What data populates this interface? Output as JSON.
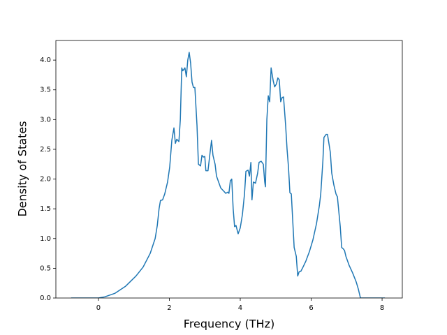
{
  "chart_data": {
    "type": "line",
    "xlabel": "Frequency (THz)",
    "ylabel": "Density of States",
    "xlim": [
      -1.2,
      8.57
    ],
    "ylim": [
      0,
      4.33
    ],
    "xticks": [
      0,
      2,
      4,
      6,
      8
    ],
    "yticks": [
      {
        "value": 0,
        "label": "0.0"
      },
      {
        "value": 0.5,
        "label": "0.5"
      },
      {
        "value": 1,
        "label": "1.0"
      },
      {
        "value": 1.5,
        "label": "1.5"
      },
      {
        "value": 2,
        "label": "2.0"
      },
      {
        "value": 2.5,
        "label": "2.5"
      },
      {
        "value": 3,
        "label": "3.0"
      },
      {
        "value": 3.5,
        "label": "3.5"
      },
      {
        "value": 4,
        "label": "4.0"
      }
    ],
    "grid": false,
    "series": [
      {
        "color": "#1f77b4",
        "x": [
          -0.77,
          0,
          0.18,
          0.47,
          0.77,
          1.06,
          1.26,
          1.46,
          1.6,
          1.66,
          1.71,
          1.75,
          1.81,
          1.87,
          1.95,
          2.01,
          2.07,
          2.13,
          2.17,
          2.21,
          2.27,
          2.31,
          2.35,
          2.38,
          2.44,
          2.48,
          2.52,
          2.56,
          2.6,
          2.64,
          2.68,
          2.72,
          2.78,
          2.82,
          2.88,
          2.92,
          2.96,
          3.0,
          3.03,
          3.09,
          3.15,
          3.19,
          3.23,
          3.29,
          3.33,
          3.39,
          3.45,
          3.53,
          3.59,
          3.65,
          3.68,
          3.72,
          3.76,
          3.8,
          3.84,
          3.88,
          3.94,
          4.0,
          4.06,
          4.12,
          4.16,
          4.22,
          4.26,
          4.3,
          4.33,
          4.37,
          4.43,
          4.49,
          4.53,
          4.59,
          4.65,
          4.69,
          4.71,
          4.75,
          4.79,
          4.83,
          4.87,
          4.93,
          4.97,
          5.02,
          5.06,
          5.1,
          5.14,
          5.18,
          5.22,
          5.28,
          5.32,
          5.36,
          5.4,
          5.44,
          5.48,
          5.52,
          5.58,
          5.62,
          5.66,
          5.71,
          5.77,
          5.85,
          5.95,
          6.05,
          6.15,
          6.23,
          6.27,
          6.33,
          6.36,
          6.42,
          6.46,
          6.5,
          6.54,
          6.58,
          6.64,
          6.7,
          6.74,
          6.78,
          6.82,
          6.86,
          6.9,
          6.94,
          6.98,
          7.07,
          7.17,
          7.27,
          7.33,
          7.39,
          8.08
        ],
        "values": [
          0,
          0,
          0.02,
          0.08,
          0.2,
          0.37,
          0.52,
          0.75,
          1.0,
          1.22,
          1.5,
          1.64,
          1.65,
          1.75,
          1.95,
          2.2,
          2.65,
          2.86,
          2.6,
          2.67,
          2.63,
          3.0,
          3.87,
          3.82,
          3.87,
          3.72,
          4.0,
          4.13,
          3.95,
          3.63,
          3.54,
          3.54,
          2.9,
          2.25,
          2.22,
          2.4,
          2.37,
          2.38,
          2.14,
          2.14,
          2.45,
          2.65,
          2.4,
          2.25,
          2.05,
          1.95,
          1.85,
          1.8,
          1.76,
          1.78,
          1.76,
          1.97,
          2.0,
          1.5,
          1.2,
          1.22,
          1.08,
          1.18,
          1.4,
          1.75,
          2.13,
          2.15,
          2.05,
          2.28,
          1.65,
          1.95,
          1.93,
          2.1,
          2.28,
          2.3,
          2.25,
          1.95,
          1.87,
          3.0,
          3.4,
          3.3,
          3.87,
          3.65,
          3.55,
          3.6,
          3.7,
          3.67,
          3.3,
          3.37,
          3.38,
          2.9,
          2.5,
          2.2,
          1.77,
          1.75,
          1.3,
          0.85,
          0.7,
          0.37,
          0.44,
          0.45,
          0.52,
          0.62,
          0.78,
          0.98,
          1.25,
          1.55,
          1.75,
          2.3,
          2.7,
          2.75,
          2.75,
          2.6,
          2.45,
          2.1,
          1.9,
          1.75,
          1.7,
          1.45,
          1.2,
          0.85,
          0.83,
          0.8,
          0.7,
          0.55,
          0.42,
          0.27,
          0.15,
          0,
          0
        ]
      }
    ]
  }
}
